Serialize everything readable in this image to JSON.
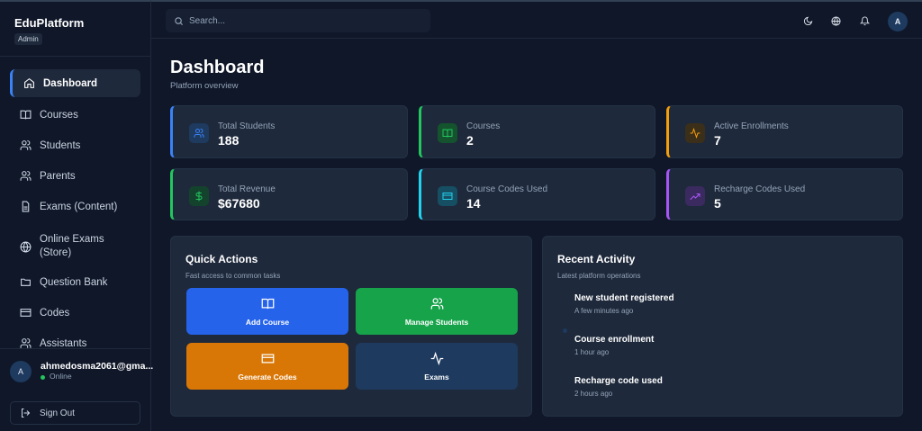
{
  "sidebar": {
    "brand": "EduPlatform",
    "role": "Admin",
    "nav": [
      "Dashboard",
      "Courses",
      "Students",
      "Parents",
      "Exams (Content)",
      "Online Exams (Store)",
      "Question Bank",
      "Codes",
      "Assistants"
    ],
    "user": {
      "avatar": "A",
      "name": "ahmedosma2061@gma...",
      "status": "Online"
    },
    "sign_out": "Sign Out"
  },
  "topbar": {
    "search_placeholder": "Search...",
    "avatar": "A"
  },
  "header": {
    "title": "Dashboard",
    "subtitle": "Platform overview"
  },
  "stats": [
    {
      "label": "Total Students",
      "value": 188
    },
    {
      "label": "Courses",
      "value": 2
    },
    {
      "label": "Active Enrollments",
      "value": 7
    },
    {
      "label": "Total Revenue",
      "value": "$67680"
    },
    {
      "label": "Course Codes Used",
      "value": 14
    },
    {
      "label": "Recharge Codes Used",
      "value": 5
    }
  ],
  "quick_actions": {
    "title": "Quick Actions",
    "subtitle": "Fast access to common tasks",
    "actions": [
      "Add Course",
      "Manage Students",
      "Generate Codes",
      "Exams"
    ]
  },
  "recent_activity": {
    "title": "Recent Activity",
    "subtitle": "Latest platform operations",
    "items": [
      {
        "title": "New student registered",
        "time": "A few minutes ago"
      },
      {
        "title": "Course enrollment",
        "time": "1 hour ago"
      },
      {
        "title": "Recharge code used",
        "time": "2 hours ago"
      }
    ]
  }
}
